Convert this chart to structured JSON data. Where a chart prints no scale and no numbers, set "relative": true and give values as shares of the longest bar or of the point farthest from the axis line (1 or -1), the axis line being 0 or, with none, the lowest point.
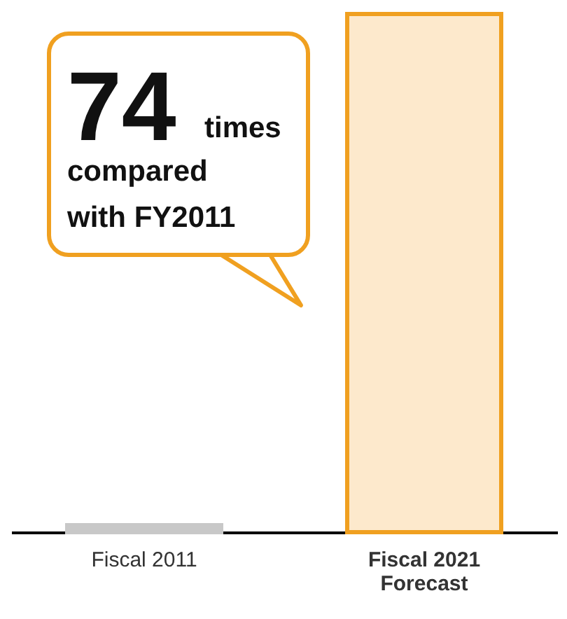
{
  "chart_data": {
    "type": "bar",
    "relative": true,
    "categories": [
      "Fiscal 2011",
      "Fiscal 2021 Forecast"
    ],
    "values": [
      0.0135,
      1
    ],
    "colors": [
      "#c8c8c8",
      "#fde9cc"
    ],
    "annotations": [
      "74 times compared with FY2011"
    ]
  }
}
